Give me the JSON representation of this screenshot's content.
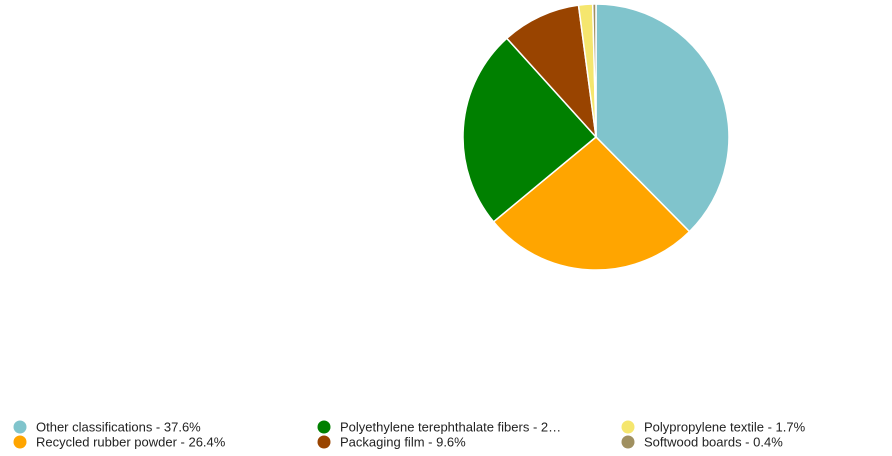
{
  "chart_data": {
    "type": "pie",
    "title": "",
    "slices": [
      {
        "label": "Other classifications",
        "value": 37.6,
        "legend_text": "Other classifications - 37.6%",
        "color": "#80c4cc"
      },
      {
        "label": "Recycled rubber powder",
        "value": 26.4,
        "legend_text": "Recycled rubber powder - 26.4%",
        "color": "#ffa500"
      },
      {
        "label": "Polyethylene terephthalate fibers",
        "value": 24.3,
        "legend_text": "Polyethylene terephthalate fibers - 2…",
        "color": "#008000"
      },
      {
        "label": "Packaging film",
        "value": 9.6,
        "legend_text": "Packaging film - 9.6%",
        "color": "#994400"
      },
      {
        "label": "Polypropylene textile",
        "value": 1.7,
        "legend_text": "Polypropylene textile - 1.7%",
        "color": "#f5e66e"
      },
      {
        "label": "Softwood boards",
        "value": 0.4,
        "legend_text": "Softwood boards - 0.4%",
        "color": "#a09060"
      }
    ],
    "legend_position": "bottom",
    "start_angle": "12 o'clock, clockwise"
  }
}
